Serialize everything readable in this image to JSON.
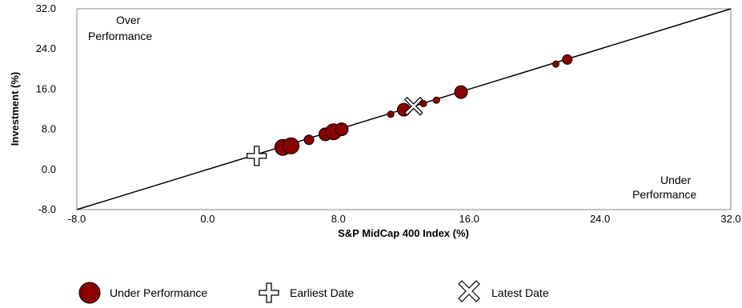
{
  "chart_data": {
    "type": "scatter",
    "xlabel": "S&P MidCap 400 Index (%)",
    "ylabel": "Investment (%)",
    "xlim": [
      -8.0,
      32.0
    ],
    "ylim": [
      -8.0,
      32.0
    ],
    "x_ticks": [
      "-8.0",
      "0.0",
      "8.0",
      "16.0",
      "24.0",
      "32.0"
    ],
    "y_ticks": [
      "-8.0",
      "0.0",
      "8.0",
      "16.0",
      "24.0",
      "32.0"
    ],
    "grid": false,
    "reference_line": "y = x",
    "annotations": {
      "over_line1": "Over",
      "over_line2": "Performance",
      "under_line1": "Under",
      "under_line2": "Performance"
    },
    "series": [
      {
        "name": "Under Performance",
        "marker": "circle",
        "color": "#8B0000",
        "points": [
          {
            "x": 4.6,
            "y": 4.4,
            "size": "large"
          },
          {
            "x": 5.1,
            "y": 4.7,
            "size": "large"
          },
          {
            "x": 6.2,
            "y": 5.9,
            "size": "small"
          },
          {
            "x": 7.2,
            "y": 7.0,
            "size": "medium"
          },
          {
            "x": 7.7,
            "y": 7.5,
            "size": "large"
          },
          {
            "x": 8.2,
            "y": 8.0,
            "size": "medium"
          },
          {
            "x": 11.2,
            "y": 11.0,
            "size": "tiny"
          },
          {
            "x": 12.0,
            "y": 11.9,
            "size": "medium"
          },
          {
            "x": 13.2,
            "y": 13.1,
            "size": "tiny"
          },
          {
            "x": 14.0,
            "y": 13.8,
            "size": "tiny"
          },
          {
            "x": 15.5,
            "y": 15.4,
            "size": "medium"
          },
          {
            "x": 21.3,
            "y": 21.0,
            "size": "tiny"
          },
          {
            "x": 22.0,
            "y": 21.9,
            "size": "small"
          }
        ]
      },
      {
        "name": "Earliest Date",
        "marker": "plus",
        "points": [
          {
            "x": 3.0,
            "y": 2.7
          }
        ]
      },
      {
        "name": "Latest Date",
        "marker": "x",
        "points": [
          {
            "x": 12.6,
            "y": 12.6
          }
        ]
      }
    ],
    "legend": {
      "position": "bottom",
      "items": [
        "Under Performance",
        "Earliest Date",
        "Latest Date"
      ]
    }
  }
}
